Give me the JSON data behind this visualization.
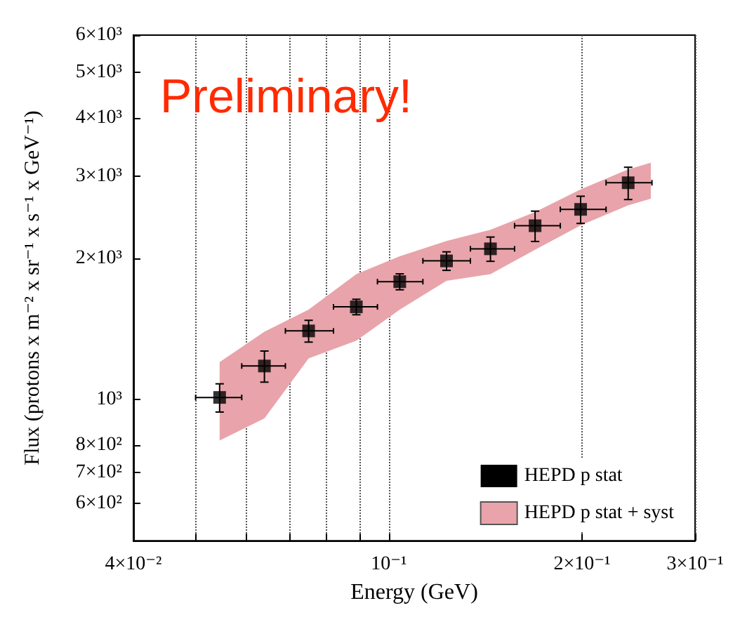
{
  "chart_data": {
    "type": "scatter",
    "annotations": [
      "Preliminary!"
    ],
    "xlabel": "Energy (GeV)",
    "ylabel": "Flux (protons x m⁻² x sr⁻¹ x s⁻¹ x GeV⁻¹)",
    "log": "xy",
    "grid": "x",
    "legend": "bottom right",
    "marker": "square",
    "xlim": [
      0.04,
      0.3
    ],
    "xticks": [
      {
        "value": 0.04,
        "label": "4×10⁻²"
      },
      {
        "value": 0.05,
        "label": null
      },
      {
        "value": 0.06,
        "label": null
      },
      {
        "value": 0.07,
        "label": null
      },
      {
        "value": 0.08,
        "label": null
      },
      {
        "value": 0.09,
        "label": null
      },
      {
        "value": 0.1,
        "label": "10⁻¹"
      },
      {
        "value": 0.2,
        "label": "2×10⁻¹"
      },
      {
        "value": 0.3,
        "label": "3×10⁻¹"
      }
    ],
    "ylim": [
      500,
      6000
    ],
    "yticks": [
      {
        "value": 600,
        "label": "6×10²"
      },
      {
        "value": 700,
        "label": "7×10²"
      },
      {
        "value": 800,
        "label": "8×10²"
      },
      {
        "value": 1000,
        "label": "10³"
      },
      {
        "value": 2000,
        "label": "2×10³"
      },
      {
        "value": 3000,
        "label": "3×10³"
      },
      {
        "value": 4000,
        "label": "4×10³"
      },
      {
        "value": 5000,
        "label": "5×10³"
      },
      {
        "value": 6000,
        "label": "6×10³"
      }
    ],
    "series": [
      {
        "name": "HEPD p stat",
        "color": "#000000",
        "x": [
          0.0545,
          0.064,
          0.075,
          0.089,
          0.104,
          0.123,
          0.144,
          0.169,
          0.199,
          0.236
        ],
        "values": [
          1011,
          1180,
          1402,
          1578,
          1786,
          1978,
          2099,
          2351,
          2548,
          2904
        ],
        "errors": [
          [
            941,
            1081
          ],
          [
            1090,
            1270
          ],
          [
            1327,
            1477
          ],
          [
            1518,
            1638
          ],
          [
            1716,
            1856
          ],
          [
            1888,
            2068
          ],
          [
            1974,
            2224
          ],
          [
            2176,
            2526
          ],
          [
            2378,
            2718
          ],
          [
            2674,
            3134
          ]
        ],
        "xerrors": [
          [
            0.05,
            0.059
          ],
          [
            0.059,
            0.069
          ],
          [
            0.069,
            0.082
          ],
          [
            0.082,
            0.096
          ],
          [
            0.096,
            0.113
          ],
          [
            0.113,
            0.134
          ],
          [
            0.134,
            0.157
          ],
          [
            0.157,
            0.185
          ],
          [
            0.185,
            0.218
          ],
          [
            0.218,
            0.257
          ]
        ]
      },
      {
        "name": "HEPD p stat + syst",
        "type": "area",
        "color": "#e8a4aa",
        "x": [
          0.0545,
          0.064,
          0.075,
          0.089,
          0.104,
          0.123,
          0.144,
          0.169,
          0.199,
          0.236,
          0.256
        ],
        "values": [
          null,
          null,
          null,
          null,
          null,
          null,
          null,
          null,
          null,
          null,
          null
        ],
        "lower": [
          818,
          912,
          1225,
          1336,
          1557,
          1794,
          1853,
          2090,
          2356,
          2599,
          2685
        ],
        "upper": [
          1203,
          1396,
          1557,
          1853,
          2023,
          2182,
          2306,
          2515,
          2811,
          3101,
          3204
        ]
      }
    ]
  }
}
